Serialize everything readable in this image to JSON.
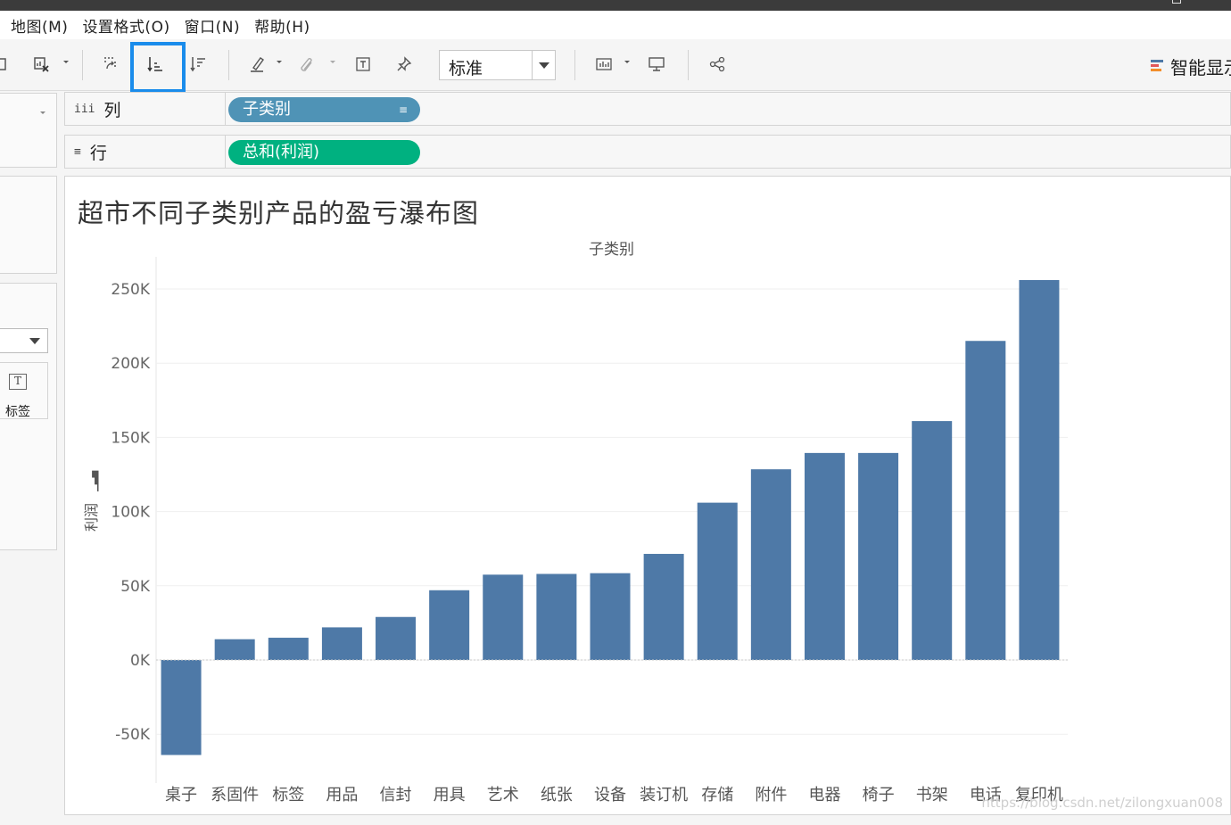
{
  "menu": [
    "地图(M)",
    "设置格式(O)",
    "窗口(N)",
    "帮助(H)"
  ],
  "toolbar": {
    "mark_size_value": "标准",
    "smart_show_label": "智能显示",
    "icons": [
      "duplicate-sheet-icon",
      "clear-sheet-icon",
      "swap-rows-columns-icon",
      "sort-ascending-icon",
      "sort-descending-icon",
      "highlight-icon",
      "group-members-icon",
      "show-mark-labels-icon",
      "pin-axes-icon",
      "show-cards-icon",
      "presentation-mode-icon",
      "share-icon"
    ]
  },
  "marks_card": {
    "label_button": "标签"
  },
  "shelves": {
    "columns": {
      "name": "列",
      "pill": "子类别",
      "icon": "iii"
    },
    "rows": {
      "name": "行",
      "pill": "总和(利润)",
      "icon": "≡"
    }
  },
  "viz": {
    "title": "超市不同子类别产品的盈亏瀑布图",
    "column_header": "子类别",
    "y_axis_title": "利润",
    "watermark": "https://blog.csdn.net/zilongxuan008"
  },
  "chart_data": {
    "type": "bar",
    "title": "超市不同子类别产品的盈亏瀑布图",
    "xlabel": "子类别",
    "ylabel": "利润",
    "categories": [
      "桌子",
      "系固件",
      "标签",
      "用品",
      "信封",
      "用具",
      "艺术",
      "纸张",
      "设备",
      "装订机",
      "存储",
      "附件",
      "电器",
      "椅子",
      "书架",
      "电话",
      "复印机"
    ],
    "values": [
      -64000,
      14000,
      15000,
      22000,
      29000,
      47000,
      57500,
      58000,
      58500,
      71500,
      106000,
      128500,
      139500,
      139500,
      161000,
      215000,
      256000
    ],
    "ylim": [
      -65000,
      257000
    ],
    "yticks": [
      -50000,
      0,
      50000,
      100000,
      150000,
      200000,
      250000
    ],
    "ytick_labels": [
      "-50K",
      "0K",
      "50K",
      "100K",
      "150K",
      "200K",
      "250K"
    ],
    "bar_color": "#4e79a7",
    "grid": true
  }
}
